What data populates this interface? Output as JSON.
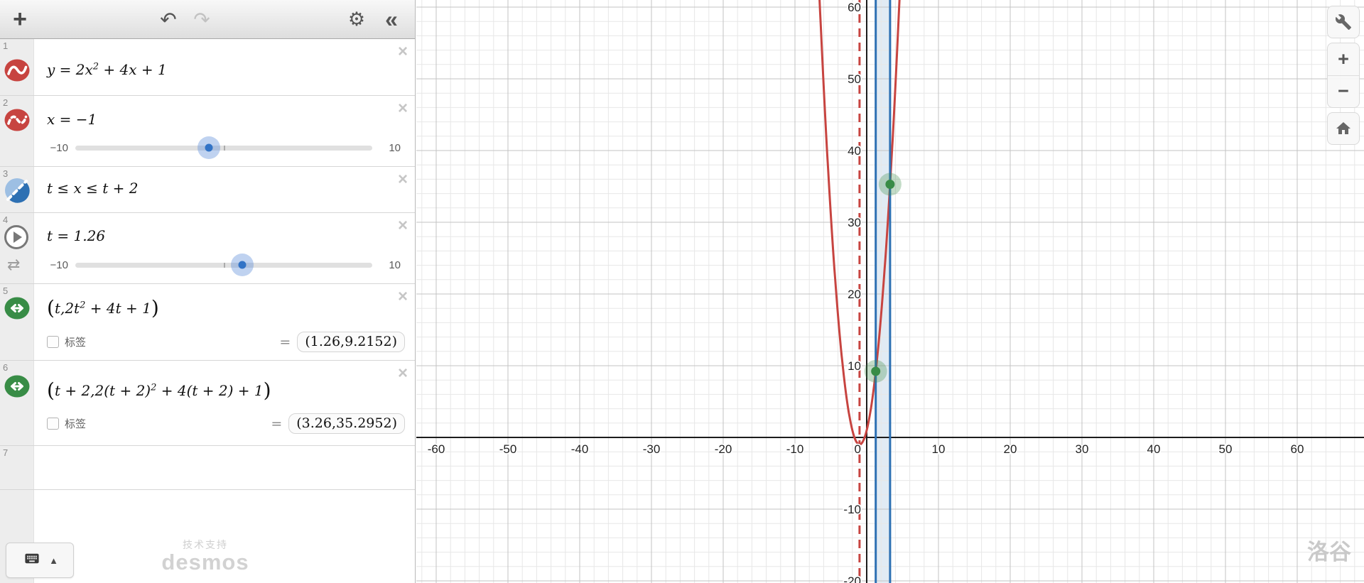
{
  "toolbar": {
    "add_icon": "+",
    "undo_icon": "↶",
    "redo_icon": "↷",
    "settings_icon": "⚙",
    "collapse_icon": "«"
  },
  "panel": {
    "close_glyph": "×",
    "keyboard_button": {
      "arrow": "▲"
    },
    "footer_support": "技术支持",
    "footer_brand": "desmos",
    "expressions": [
      {
        "index": "1",
        "icon": "red-curve",
        "math": [
          {
            "text": "y = 2x"
          },
          {
            "text": "2",
            "sup": true
          },
          {
            "text": " + 4x + 1"
          }
        ]
      },
      {
        "index": "2",
        "icon": "red-dashed-curve",
        "math": [
          {
            "text": "x = −1"
          }
        ],
        "slider": {
          "min": -10,
          "max": 10,
          "value": -1,
          "min_label": "−10",
          "max_label": "10"
        }
      },
      {
        "index": "3",
        "icon": "blue-inequality",
        "math": [
          {
            "text": "t ≤ x ≤ t + 2"
          }
        ]
      },
      {
        "index": "4",
        "icon": "play",
        "loop_glyph": "⇄",
        "math": [
          {
            "text": "t = 1.26"
          }
        ],
        "slider": {
          "min": -10,
          "max": 10,
          "value": 1.26,
          "min_label": "−10",
          "max_label": "10"
        }
      },
      {
        "index": "5",
        "icon": "green-point",
        "math": [
          {
            "text": "(",
            "paren": true
          },
          {
            "text": "t,2t"
          },
          {
            "text": "2",
            "sup": true
          },
          {
            "text": " + 4t + 1"
          },
          {
            "text": ")",
            "paren": true
          }
        ],
        "label_checkbox": "标签",
        "equals": "=",
        "result": "(1.26,9.2152)"
      },
      {
        "index": "6",
        "icon": "green-point",
        "math": [
          {
            "text": "(",
            "paren": true
          },
          {
            "text": "t + 2,2(t + 2)"
          },
          {
            "text": "2",
            "sup": true
          },
          {
            "text": " + 4(t + 2) + 1"
          },
          {
            "text": ")",
            "paren": true
          }
        ],
        "label_checkbox": "标签",
        "equals": "=",
        "result": "(3.26,35.2952)"
      },
      {
        "index": "7",
        "icon": null,
        "math": []
      }
    ]
  },
  "graph_controls": {
    "zoom_in": "+",
    "zoom_out": "−"
  },
  "graph_watermark": "洛谷",
  "chart_data": {
    "type": "line",
    "title": "",
    "functions": [
      {
        "label": "y = 2x^2 + 4x + 1",
        "coeffs": {
          "a": 2,
          "b": 4,
          "c": 1
        },
        "color": "#c74440",
        "width": 3
      }
    ],
    "vline": {
      "x": -1,
      "color": "#c74440",
      "dashed": true
    },
    "band": {
      "x_from": 1.26,
      "x_to": 3.26,
      "edge_color": "#2d70b3",
      "fill_opacity": 0.14
    },
    "points": [
      {
        "x": 1.26,
        "y": 9.2152
      },
      {
        "x": 3.26,
        "y": 35.2952
      }
    ],
    "point_color": "#388c46",
    "x_ticks": {
      "min": -60,
      "max": 60,
      "step": 10
    },
    "y_ticks": {
      "min": -20,
      "max": 60,
      "step": 10
    },
    "minor_step": 2,
    "origin_label": "0",
    "xlim": [
      -62.9,
      69.2
    ],
    "ylim": [
      -20.3,
      61.0
    ],
    "grid": true,
    "legend": false
  }
}
